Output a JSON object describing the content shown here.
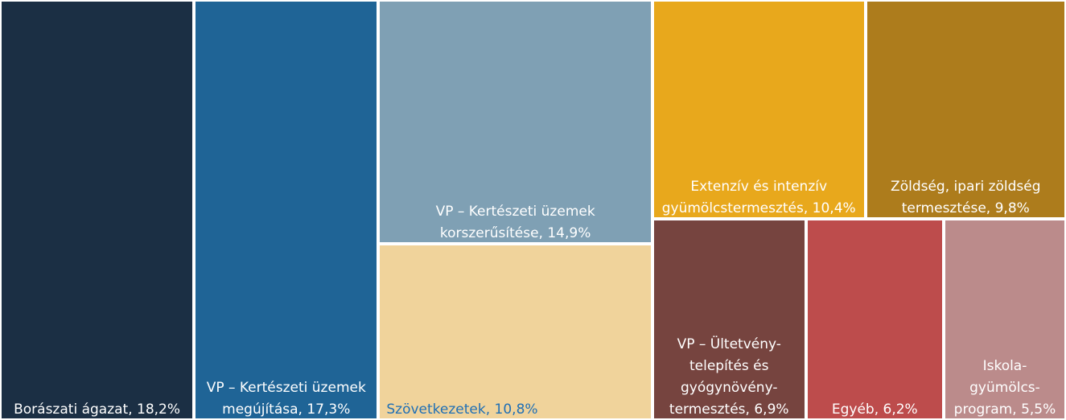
{
  "chart_data": {
    "type": "treemap",
    "categories": [
      "Borászati ágazat",
      "VP – Kertészeti üzemek megújítása",
      "VP – Kertészeti üzemek korszerűsítése",
      "Szövetkezetek",
      "Extenzív és intenzív gyümölcstermesztés",
      "Zöldség, ipari zöldség termesztése",
      "VP – Ültetvény-telepítés és gyógynövény-termesztés",
      "Egyéb",
      "Iskola-gyümölcs-program"
    ],
    "values": [
      18.2,
      17.3,
      14.9,
      10.8,
      10.4,
      9.8,
      6.9,
      6.2,
      5.5
    ],
    "value_labels": [
      "18,2%",
      "17,3%",
      "14,9%",
      "10,8%",
      "10,4%",
      "9,8%",
      "6,9%",
      "6,2%",
      "5,5%"
    ],
    "colors": [
      "#1b2f44",
      "#1f6496",
      "#7fa0b4",
      "#f0d39b",
      "#e8a81c",
      "#ad7c1c",
      "#76443f",
      "#bd4c4c",
      "#bb8b8b"
    ],
    "label_colors": [
      "#ffffff",
      "#ffffff",
      "#ffffff",
      "#1f6fb5",
      "#ffffff",
      "#ffffff",
      "#ffffff",
      "#ffffff",
      "#ffffff"
    ]
  }
}
